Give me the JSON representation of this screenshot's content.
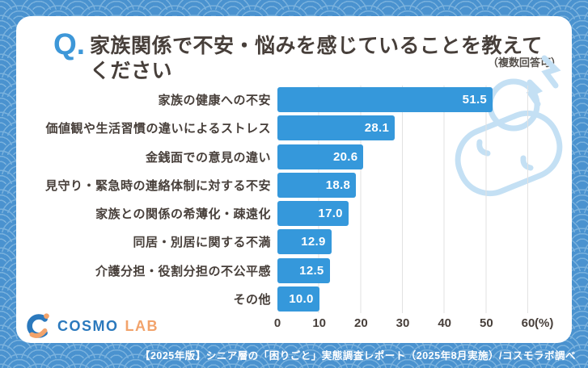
{
  "header": {
    "q_label": "Q.",
    "title": "家族関係で不安・悩みを感じていることを教えてください",
    "note": "（複数回答可）"
  },
  "chart_data": {
    "type": "bar",
    "orientation": "horizontal",
    "categories": [
      "家族の健康への不安",
      "価値観や生活習慣の違いによるストレス",
      "金銭面での意見の違い",
      "見守り・緊急時の連絡体制に対する不安",
      "家族との関係の希薄化・疎遠化",
      "同居・別居に関する不満",
      "介護分担・役割分担の不公平感",
      "その他"
    ],
    "values": [
      51.5,
      28.1,
      20.6,
      18.8,
      17.0,
      12.9,
      12.5,
      10.0
    ],
    "xlim": [
      0,
      60
    ],
    "x_ticks": [
      0,
      10,
      20,
      30,
      40,
      50,
      60
    ],
    "x_unit": "(%)",
    "grid": true,
    "legend_position": "none",
    "bar_color": "#3598db",
    "value_label_color": "#ffffff",
    "grid_color": "#e2e2e2"
  },
  "logo": {
    "primary": "COSMO",
    "secondary": "LAB"
  },
  "footer": {
    "text": "【2025年版】シニア層の「困りごと」実態調査レポート（2025年8月実施）/コスモラボ調べ"
  },
  "colors": {
    "accent_blue": "#3598db",
    "pattern_base": "#4a92cf",
    "pattern_arc": "#79b1dd",
    "text_dark": "#473f3a",
    "logo_blue": "#2b79bd",
    "logo_orange": "#f2a36b",
    "illustration_blue": "#c4e0f4"
  }
}
